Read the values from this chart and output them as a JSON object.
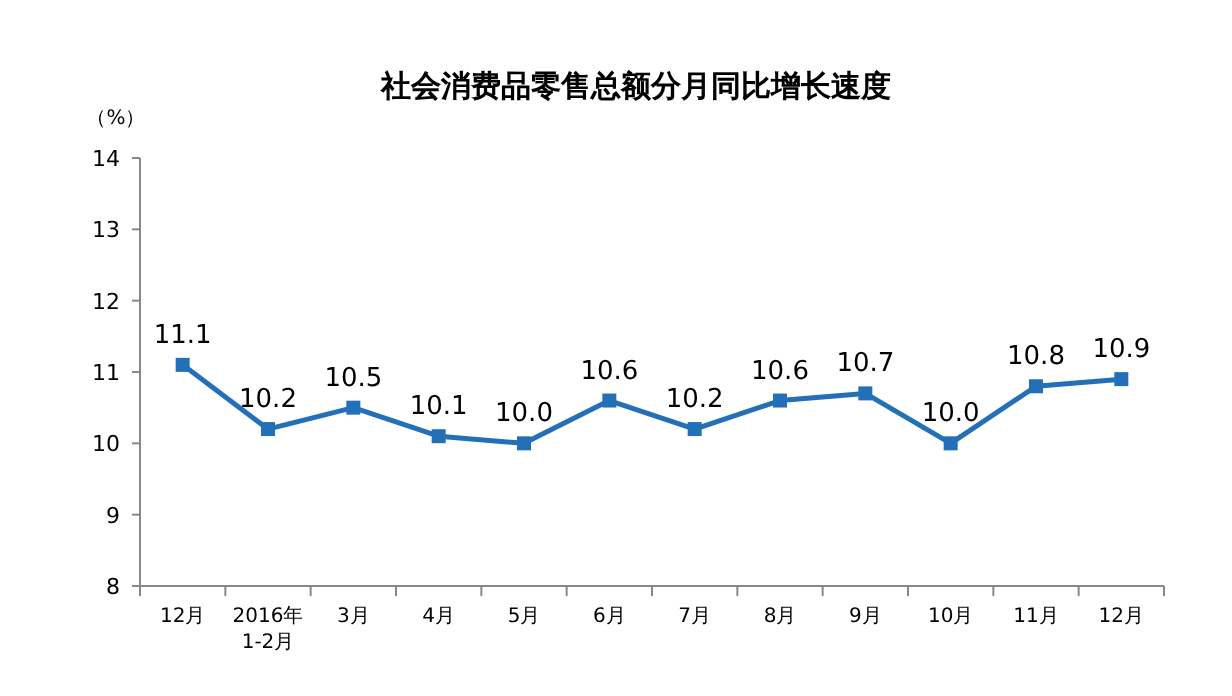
{
  "chart_data": {
    "type": "line",
    "title": "社会消费品零售总额分月同比增长速度",
    "ylabel": "（%）",
    "categories": [
      "12月",
      "2016年\n1-2月",
      "3月",
      "4月",
      "5月",
      "6月",
      "7月",
      "8月",
      "9月",
      "10月",
      "11月",
      "12月"
    ],
    "series": [
      {
        "color": "#2470b8",
        "values": [
          11.1,
          10.2,
          10.5,
          10.1,
          10.0,
          10.6,
          10.2,
          10.6,
          10.7,
          10.0,
          10.8,
          10.9
        ]
      }
    ],
    "value_labels": [
      "11.1",
      "10.2",
      "10.5",
      "10.1",
      "10.0",
      "10.6",
      "10.2",
      "10.6",
      "10.7",
      "10.0",
      "10.8",
      "10.9"
    ],
    "ylim": [
      8,
      14
    ],
    "yticks": [
      8,
      9,
      10,
      11,
      12,
      13,
      14
    ],
    "grid": false,
    "marker": "square",
    "line_style": "solid"
  }
}
